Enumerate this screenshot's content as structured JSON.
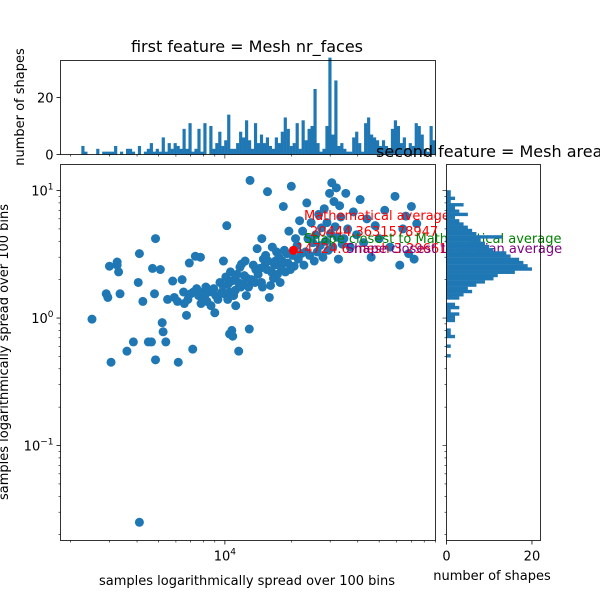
{
  "titles": {
    "top": "first feature = Mesh nr_faces",
    "right": "second feature = Mesh area"
  },
  "labels": {
    "main_x": "samples logarithmically spread over 100 bins",
    "main_y": "samples logarithmically spread over 100 bins",
    "top_hist_y": "number of shapes",
    "right_hist_x": "number of shapes"
  },
  "ticks": {
    "main_x": [
      {
        "value": 10000,
        "label": "10^4"
      }
    ],
    "main_y": [
      {
        "value": 10,
        "label": "10^1"
      },
      {
        "value": 1,
        "label": "10^0"
      },
      {
        "value": 0.1,
        "label": "10^−1"
      }
    ],
    "top_hist_y": [
      {
        "value": 0,
        "label": "0"
      },
      {
        "value": 20,
        "label": "20"
      }
    ],
    "right_hist_x": [
      {
        "value": 0,
        "label": "0"
      },
      {
        "value": 20,
        "label": "20"
      }
    ]
  },
  "annotations": {
    "math_avg": "Mathematical average",
    "math_avg_value": "20444.3631578947",
    "closest_to_avg": "Shape closest to Mathematical average",
    "closest_values": "14724.6 mesh 3.29661",
    "other_avg": "Shape closest to Median average"
  },
  "colors": {
    "points": "#1f77b4",
    "bars": "#1f77b4",
    "average_point": "#ff0000",
    "math_avg_text": "#ff0000",
    "closest_text": "#008000",
    "other_text": "#800080"
  },
  "chart_data": [
    {
      "type": "scatter",
      "xscale": "log",
      "yscale": "log",
      "xlabel": "samples logarithmically spread over 100 bins",
      "ylabel": "samples logarithmically spread over 100 bins",
      "xlim": [
        1800,
        90000
      ],
      "ylim": [
        0.018,
        16
      ],
      "points": [
        [
          2500,
          0.98
        ],
        [
          2900,
          1.55
        ],
        [
          2950,
          1.45
        ],
        [
          3000,
          2.55
        ],
        [
          3050,
          0.45
        ],
        [
          3250,
          2.6
        ],
        [
          3250,
          2.75
        ],
        [
          3300,
          2.3
        ],
        [
          3350,
          1.55
        ],
        [
          3600,
          0.55
        ],
        [
          3850,
          0.65
        ],
        [
          4050,
          1.9
        ],
        [
          4100,
          0.025
        ],
        [
          4100,
          3.2
        ],
        [
          4250,
          1.35
        ],
        [
          4500,
          0.65
        ],
        [
          4650,
          0.65
        ],
        [
          4700,
          2.45
        ],
        [
          4800,
          1.55
        ],
        [
          4850,
          0.47
        ],
        [
          4850,
          4.2
        ],
        [
          5100,
          2.4
        ],
        [
          5200,
          0.92
        ],
        [
          5250,
          0.78
        ],
        [
          5400,
          0.65
        ],
        [
          5500,
          1.4
        ],
        [
          5800,
          1.95
        ],
        [
          5900,
          1.45
        ],
        [
          6100,
          1.35
        ],
        [
          6150,
          0.45
        ],
        [
          6400,
          2.0
        ],
        [
          6500,
          1.6
        ],
        [
          6550,
          1.3
        ],
        [
          6700,
          1.05
        ],
        [
          6800,
          1.4
        ],
        [
          6900,
          2.7
        ],
        [
          7000,
          1.55
        ],
        [
          7150,
          0.57
        ],
        [
          7200,
          1.6
        ],
        [
          7300,
          1.6
        ],
        [
          7350,
          3.05
        ],
        [
          7450,
          1.7
        ],
        [
          7600,
          1.5
        ],
        [
          7750,
          3.0
        ],
        [
          7800,
          1.3
        ],
        [
          7900,
          1.4
        ],
        [
          8000,
          1.6
        ],
        [
          8100,
          1.5
        ],
        [
          8200,
          1.75
        ],
        [
          8300,
          1.35
        ],
        [
          8450,
          1.6
        ],
        [
          8650,
          1.25
        ],
        [
          8800,
          1.6
        ],
        [
          8900,
          1.7
        ],
        [
          9000,
          1.1
        ],
        [
          9100,
          1.5
        ],
        [
          9300,
          1.4
        ],
        [
          9500,
          1.9
        ],
        [
          9700,
          1.6
        ],
        [
          9800,
          1.8
        ],
        [
          9850,
          2.8
        ],
        [
          9950,
          1.55
        ],
        [
          10100,
          2.1
        ],
        [
          10200,
          5.3
        ],
        [
          10300,
          1.4
        ],
        [
          10350,
          1.85
        ],
        [
          10450,
          1.6
        ],
        [
          10500,
          0.75
        ],
        [
          10600,
          2.3
        ],
        [
          10700,
          1.95
        ],
        [
          10750,
          0.8
        ],
        [
          10850,
          0.72
        ],
        [
          10950,
          1.5
        ],
        [
          11050,
          2.0
        ],
        [
          11150,
          1.65
        ],
        [
          11200,
          1.25
        ],
        [
          11350,
          2.2
        ],
        [
          11500,
          1.9
        ],
        [
          11550,
          0.55
        ],
        [
          11700,
          2.5
        ],
        [
          11800,
          1.75
        ],
        [
          11900,
          2.65
        ],
        [
          12100,
          1.85
        ],
        [
          12250,
          2.15
        ],
        [
          12350,
          2.8
        ],
        [
          12500,
          1.5
        ],
        [
          12600,
          2.05
        ],
        [
          12800,
          1.75
        ],
        [
          12900,
          0.82
        ],
        [
          13000,
          12.0
        ],
        [
          13200,
          2.0
        ],
        [
          13450,
          2.6
        ],
        [
          13700,
          1.9
        ],
        [
          13800,
          2.4
        ],
        [
          14000,
          3.5
        ],
        [
          14150,
          2.2
        ],
        [
          14400,
          2.45
        ],
        [
          14650,
          1.9
        ],
        [
          14700,
          4.2
        ],
        [
          14800,
          1.75
        ],
        [
          14950,
          2.9
        ],
        [
          15100,
          2.55
        ],
        [
          15300,
          3.1
        ],
        [
          15500,
          2.4
        ],
        [
          15600,
          9.8
        ],
        [
          15700,
          2.8
        ],
        [
          15900,
          1.45
        ],
        [
          16100,
          1.8
        ],
        [
          16250,
          2.3
        ],
        [
          16400,
          3.6
        ],
        [
          16600,
          2.05
        ],
        [
          16800,
          2.6
        ],
        [
          16950,
          2.8
        ],
        [
          17150,
          3.3
        ],
        [
          17300,
          2.2
        ],
        [
          17550,
          3.0
        ],
        [
          17800,
          1.9
        ],
        [
          17950,
          2.5
        ],
        [
          18200,
          2.8
        ],
        [
          18400,
          7.5
        ],
        [
          18600,
          3.4
        ],
        [
          18800,
          2.3
        ],
        [
          19100,
          3.2
        ],
        [
          19300,
          2.7
        ],
        [
          19500,
          4.8
        ],
        [
          19800,
          2.4
        ],
        [
          20000,
          10.8
        ],
        [
          20250,
          3.1
        ],
        [
          20600,
          2.55
        ],
        [
          20900,
          4.2
        ],
        [
          21250,
          3.7
        ],
        [
          21500,
          2.9
        ],
        [
          21800,
          5.8
        ],
        [
          22200,
          3.2
        ],
        [
          22500,
          4.8
        ],
        [
          22800,
          2.6
        ],
        [
          23200,
          3.3
        ],
        [
          23500,
          8.0
        ],
        [
          23800,
          4.2
        ],
        [
          24200,
          3.1
        ],
        [
          24600,
          5.6
        ],
        [
          25000,
          3.9
        ],
        [
          25400,
          2.8
        ],
        [
          25800,
          4.5
        ],
        [
          26200,
          3.3
        ],
        [
          26600,
          6.5
        ],
        [
          27000,
          3.7
        ],
        [
          27400,
          5.1
        ],
        [
          27800,
          3.0
        ],
        [
          28200,
          7.2
        ],
        [
          28600,
          4.0
        ],
        [
          29000,
          5.6
        ],
        [
          29400,
          3.4
        ],
        [
          29800,
          9.5
        ],
        [
          30100,
          4.6
        ],
        [
          30500,
          11.5
        ],
        [
          30800,
          3.6
        ],
        [
          31200,
          8.2
        ],
        [
          31600,
          5.2
        ],
        [
          32000,
          10.5
        ],
        [
          32300,
          4.3
        ],
        [
          32700,
          2.9
        ],
        [
          33100,
          7.6
        ],
        [
          33500,
          6.2
        ],
        [
          34000,
          3.8
        ],
        [
          34600,
          4.2
        ],
        [
          35300,
          9.5
        ],
        [
          36000,
          5.0
        ],
        [
          37000,
          3.6
        ],
        [
          38200,
          6.8
        ],
        [
          39500,
          4.5
        ],
        [
          41000,
          8.5
        ],
        [
          42500,
          3.9
        ],
        [
          44000,
          6.0
        ],
        [
          46000,
          3.0
        ],
        [
          48000,
          5.3
        ],
        [
          50000,
          4.2
        ],
        [
          53000,
          7.0
        ],
        [
          56000,
          3.6
        ],
        [
          59000,
          9.0
        ],
        [
          62000,
          2.6
        ],
        [
          64000,
          5.0
        ],
        [
          66000,
          6.3
        ],
        [
          68000,
          3.2
        ],
        [
          70000,
          7.5
        ],
        [
          72000,
          2.9
        ],
        [
          74000,
          5.5
        ]
      ],
      "highlight": [
        20444.36,
        3.4
      ]
    },
    {
      "type": "bar",
      "orientation": "vertical",
      "ylabel": "number of shapes",
      "xscale": "log",
      "xlim": [
        1800,
        90000
      ],
      "ylim": [
        0,
        33
      ],
      "bin_edges_log10": [
        3.285,
        4.955
      ],
      "values": [
        0,
        0,
        0,
        0,
        0,
        0,
        0,
        3,
        1,
        0,
        0,
        0,
        2,
        0,
        1,
        1,
        1,
        1,
        3,
        0,
        1,
        0,
        2,
        2,
        1,
        0,
        3,
        0,
        1,
        2,
        4,
        1,
        2,
        1,
        6,
        1,
        4,
        2,
        4,
        3,
        2,
        9,
        2,
        11,
        1,
        2,
        9,
        1,
        11,
        0,
        10,
        2,
        4,
        8,
        3,
        5,
        14,
        2,
        2,
        4,
        8,
        6,
        12,
        5,
        2,
        11,
        4,
        7,
        4,
        6,
        3,
        2,
        6,
        4,
        8,
        13,
        9,
        3,
        4,
        11,
        2,
        12,
        5,
        9,
        10,
        23,
        4,
        1,
        2,
        10,
        34,
        7,
        26,
        3,
        4,
        2,
        1,
        1,
        6,
        8,
        4,
        1,
        11,
        13,
        7,
        6,
        5,
        3,
        5,
        3,
        2,
        9,
        12,
        10,
        4,
        6,
        2,
        4,
        3,
        11,
        10,
        7,
        2,
        1,
        10,
        5
      ]
    },
    {
      "type": "bar",
      "orientation": "horizontal",
      "xlabel": "number of shapes",
      "yscale": "log",
      "ylim": [
        0.018,
        16
      ],
      "xlim": [
        0,
        22
      ],
      "bin_edges_log10": [
        -1.6,
        1.15
      ],
      "values": [
        0,
        0,
        0,
        0,
        0,
        0,
        0,
        0,
        0,
        0,
        0,
        0,
        0,
        0,
        0,
        0,
        0,
        0,
        0,
        0,
        0,
        0,
        0,
        0,
        0,
        0,
        0,
        0,
        0,
        0,
        0,
        0,
        0,
        0,
        0,
        0,
        0,
        0,
        0,
        0,
        0,
        0,
        0,
        0,
        0,
        0,
        0,
        0,
        0,
        0,
        0,
        0,
        0,
        0,
        0,
        0,
        0,
        1,
        0,
        0,
        1,
        0,
        0,
        2,
        1,
        1,
        0,
        0,
        2,
        2,
        3,
        1,
        3,
        2,
        0,
        3,
        4,
        6,
        5,
        7,
        9,
        11,
        12,
        16,
        20,
        19,
        18,
        17,
        15,
        14,
        11,
        10,
        9,
        8,
        13,
        7,
        6,
        5,
        4,
        3,
        2,
        5,
        3,
        2,
        4,
        1,
        2,
        1,
        1,
        0,
        0,
        0,
        0,
        0,
        0,
        0,
        0
      ]
    }
  ]
}
